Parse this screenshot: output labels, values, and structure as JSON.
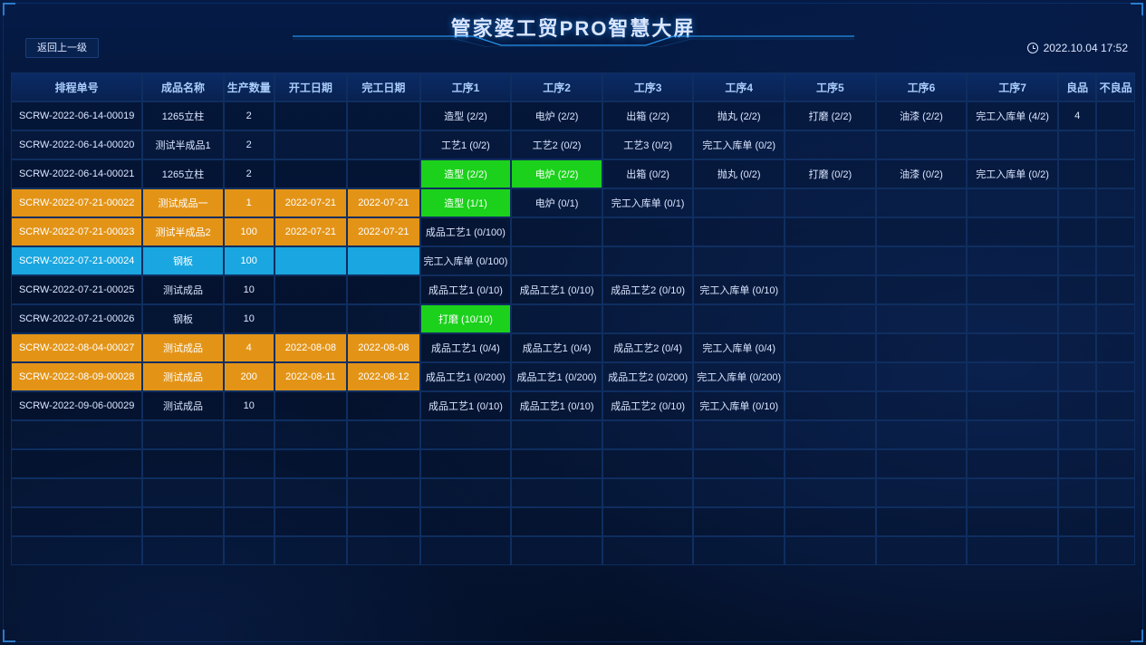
{
  "title": "管家婆工贸PRO智慧大屏",
  "back_label": "返回上一级",
  "timestamp": "2022.10.04  17:52",
  "colors": {
    "green": "#1bd11b",
    "orange": "#e39417",
    "cyan": "#1aa6e0",
    "header_bg": "#0b2b66",
    "border": "#0f2e60"
  },
  "step_count": 7,
  "columns": {
    "order": "排程单号",
    "name": "成品名称",
    "qty": "生产数量",
    "start": "开工日期",
    "end": "完工日期",
    "step_prefix": "工序",
    "good": "良品",
    "bad": "不良品"
  },
  "empty_rows": 5,
  "rows": [
    {
      "order": "SCRW-2022-06-14-00019",
      "name": "1265立柱",
      "qty": "2",
      "start": "",
      "end": "",
      "row_hl": "",
      "good": "4",
      "bad": "",
      "steps": [
        {
          "t": "造型 (2/2)"
        },
        {
          "t": "电炉 (2/2)"
        },
        {
          "t": "出箱 (2/2)"
        },
        {
          "t": "抛丸 (2/2)"
        },
        {
          "t": "打磨 (2/2)"
        },
        {
          "t": "油漆 (2/2)"
        },
        {
          "t": "完工入库单 (4/2)"
        }
      ]
    },
    {
      "order": "SCRW-2022-06-14-00020",
      "name": "测试半成品1",
      "qty": "2",
      "start": "",
      "end": "",
      "row_hl": "",
      "good": "",
      "bad": "",
      "steps": [
        {
          "t": "工艺1 (0/2)"
        },
        {
          "t": "工艺2 (0/2)"
        },
        {
          "t": "工艺3 (0/2)"
        },
        {
          "t": "完工入库单 (0/2)"
        },
        {
          "t": ""
        },
        {
          "t": ""
        },
        {
          "t": ""
        }
      ]
    },
    {
      "order": "SCRW-2022-06-14-00021",
      "name": "1265立柱",
      "qty": "2",
      "start": "",
      "end": "",
      "row_hl": "",
      "good": "",
      "bad": "",
      "steps": [
        {
          "t": "造型 (2/2)",
          "hl": "green"
        },
        {
          "t": "电炉 (2/2)",
          "hl": "green"
        },
        {
          "t": "出箱 (0/2)"
        },
        {
          "t": "抛丸 (0/2)"
        },
        {
          "t": "打磨 (0/2)"
        },
        {
          "t": "油漆 (0/2)"
        },
        {
          "t": "完工入库单 (0/2)"
        }
      ]
    },
    {
      "order": "SCRW-2022-07-21-00022",
      "name": "测试成品一",
      "qty": "1",
      "start": "2022-07-21",
      "end": "2022-07-21",
      "row_hl": "orange",
      "good": "",
      "bad": "",
      "steps": [
        {
          "t": "造型 (1/1)",
          "hl": "green"
        },
        {
          "t": "电炉 (0/1)"
        },
        {
          "t": "完工入库单 (0/1)"
        },
        {
          "t": ""
        },
        {
          "t": ""
        },
        {
          "t": ""
        },
        {
          "t": ""
        }
      ]
    },
    {
      "order": "SCRW-2022-07-21-00023",
      "name": "测试半成品2",
      "qty": "100",
      "start": "2022-07-21",
      "end": "2022-07-21",
      "row_hl": "orange",
      "good": "",
      "bad": "",
      "steps": [
        {
          "t": "成品工艺1 (0/100)"
        },
        {
          "t": ""
        },
        {
          "t": ""
        },
        {
          "t": ""
        },
        {
          "t": ""
        },
        {
          "t": ""
        },
        {
          "t": ""
        }
      ]
    },
    {
      "order": "SCRW-2022-07-21-00024",
      "name": "钢板",
      "qty": "100",
      "start": "",
      "end": "",
      "row_hl": "cyan",
      "good": "",
      "bad": "",
      "steps": [
        {
          "t": "完工入库单 (0/100)"
        },
        {
          "t": ""
        },
        {
          "t": ""
        },
        {
          "t": ""
        },
        {
          "t": ""
        },
        {
          "t": ""
        },
        {
          "t": ""
        }
      ]
    },
    {
      "order": "SCRW-2022-07-21-00025",
      "name": "测试成品",
      "qty": "10",
      "start": "",
      "end": "",
      "row_hl": "",
      "good": "",
      "bad": "",
      "steps": [
        {
          "t": "成品工艺1 (0/10)"
        },
        {
          "t": "成品工艺1 (0/10)"
        },
        {
          "t": "成品工艺2 (0/10)"
        },
        {
          "t": "完工入库单 (0/10)"
        },
        {
          "t": ""
        },
        {
          "t": ""
        },
        {
          "t": ""
        }
      ]
    },
    {
      "order": "SCRW-2022-07-21-00026",
      "name": "钢板",
      "qty": "10",
      "start": "",
      "end": "",
      "row_hl": "",
      "good": "",
      "bad": "",
      "steps": [
        {
          "t": "打磨 (10/10)",
          "hl": "green"
        },
        {
          "t": ""
        },
        {
          "t": ""
        },
        {
          "t": ""
        },
        {
          "t": ""
        },
        {
          "t": ""
        },
        {
          "t": ""
        }
      ]
    },
    {
      "order": "SCRW-2022-08-04-00027",
      "name": "测试成品",
      "qty": "4",
      "start": "2022-08-08",
      "end": "2022-08-08",
      "row_hl": "orange",
      "good": "",
      "bad": "",
      "steps": [
        {
          "t": "成品工艺1 (0/4)"
        },
        {
          "t": "成品工艺1 (0/4)"
        },
        {
          "t": "成品工艺2 (0/4)"
        },
        {
          "t": "完工入库单 (0/4)"
        },
        {
          "t": ""
        },
        {
          "t": ""
        },
        {
          "t": ""
        }
      ]
    },
    {
      "order": "SCRW-2022-08-09-00028",
      "name": "测试成品",
      "qty": "200",
      "start": "2022-08-11",
      "end": "2022-08-12",
      "row_hl": "orange",
      "good": "",
      "bad": "",
      "steps": [
        {
          "t": "成品工艺1 (0/200)"
        },
        {
          "t": "成品工艺1 (0/200)"
        },
        {
          "t": "成品工艺2 (0/200)"
        },
        {
          "t": "完工入库单 (0/200)"
        },
        {
          "t": ""
        },
        {
          "t": ""
        },
        {
          "t": ""
        }
      ]
    },
    {
      "order": "SCRW-2022-09-06-00029",
      "name": "测试成品",
      "qty": "10",
      "start": "",
      "end": "",
      "row_hl": "",
      "good": "",
      "bad": "",
      "steps": [
        {
          "t": "成品工艺1 (0/10)"
        },
        {
          "t": "成品工艺1 (0/10)"
        },
        {
          "t": "成品工艺2 (0/10)"
        },
        {
          "t": "完工入库单 (0/10)"
        },
        {
          "t": ""
        },
        {
          "t": ""
        },
        {
          "t": ""
        }
      ]
    }
  ]
}
